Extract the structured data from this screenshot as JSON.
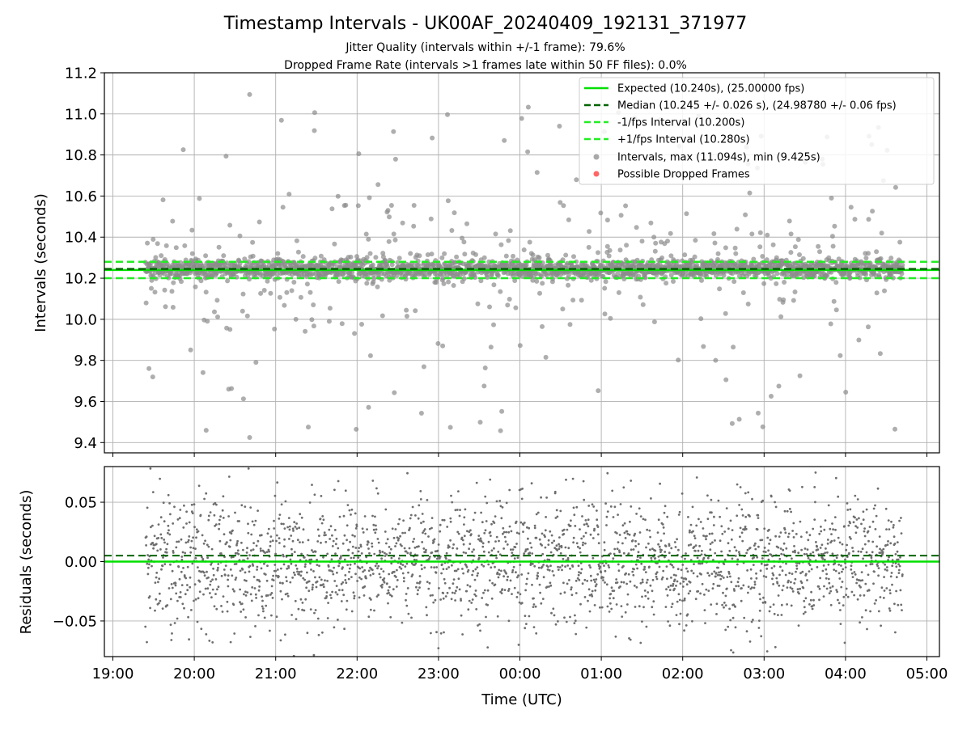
{
  "chart_data": {
    "type": "scatter",
    "title": "Timestamp Intervals - UK00AF_20240409_192131_371977",
    "subtitles": [
      "Jitter Quality (intervals within +/-1 frame): 79.6%",
      "Dropped Frame Rate (intervals >1 frames late within 50 FF files): 0.0%"
    ],
    "xlabel": "Time (UTC)",
    "x_ticks": [
      "19:00",
      "20:00",
      "21:00",
      "22:00",
      "23:00",
      "00:00",
      "01:00",
      "02:00",
      "03:00",
      "04:00",
      "05:00"
    ],
    "x_range": [
      "19:00",
      "05:00"
    ],
    "grid": true,
    "colors": {
      "expected": "#00e000",
      "median": "#006400",
      "fps_interval": "#22ee22",
      "intervals": "#8c8c8c",
      "residuals": "#6e6e6e",
      "dropped": "#ff4040",
      "grid": "#b0b0b0"
    },
    "intervals_panel": {
      "ylabel": "Intervals (seconds)",
      "ylim": [
        9.35,
        11.2
      ],
      "y_ticks": [
        "9.4",
        "9.6",
        "9.8",
        "10.0",
        "10.2",
        "10.4",
        "10.6",
        "10.8",
        "11.0",
        "11.2"
      ],
      "expected": 10.24,
      "median": 10.245,
      "lower_interval": 10.2,
      "upper_interval": 10.28,
      "data_range_hours_after_1900": [
        0.4,
        9.7
      ],
      "max": 11.094,
      "min": 9.425,
      "dropped_frames_count": 0,
      "legend": {
        "placement": "upper right",
        "entries": [
          {
            "label": "Expected (10.240s), (25.00000 fps)",
            "style": "solid",
            "color": "#00e000"
          },
          {
            "label": "Median (10.245 +/- 0.026 s), (24.98780 +/- 0.06 fps)",
            "style": "dashed",
            "color": "#006400"
          },
          {
            "label": "-1/fps Interval (10.200s)",
            "style": "dashed",
            "color": "#22ee22"
          },
          {
            "label": "+1/fps Interval (10.280s)",
            "style": "dashed",
            "color": "#22ee22"
          },
          {
            "label": "Intervals, max (11.094s), min (9.425s)",
            "style": "marker",
            "color": "#8c8c8c"
          },
          {
            "label": "Possible Dropped Frames",
            "style": "marker",
            "color": "#ff4040"
          }
        ]
      }
    },
    "residuals_panel": {
      "ylabel": "Residuals (seconds)",
      "ylim": [
        -0.08,
        0.08
      ],
      "y_ticks": [
        "−0.05",
        "0.00",
        "0.05"
      ],
      "zero_line": 0.0,
      "median_offset": 0.005,
      "spread_range": [
        -0.08,
        0.08
      ]
    }
  }
}
